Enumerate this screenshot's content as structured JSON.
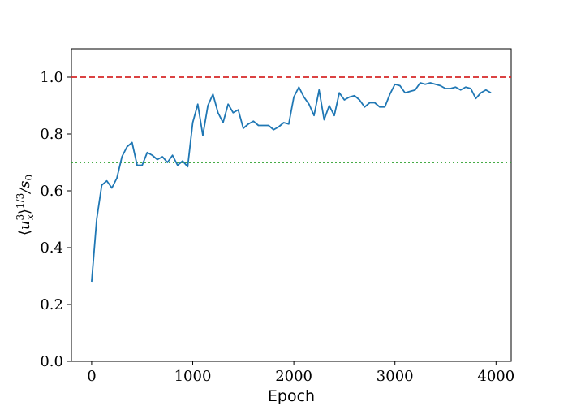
{
  "chart_data": {
    "type": "line",
    "title": "",
    "xlabel": "Epoch",
    "ylabel": "⟨u_x^3⟩^{1/3}/s_0",
    "xlim": [
      -200,
      4150
    ],
    "ylim": [
      0.0,
      1.1
    ],
    "xticks": [
      0,
      1000,
      2000,
      3000,
      4000
    ],
    "yticks": [
      0.0,
      0.2,
      0.4,
      0.6,
      0.8,
      1.0
    ],
    "xtick_labels": [
      "0",
      "1000",
      "2000",
      "3000",
      "4000"
    ],
    "ytick_labels": [
      "0.0",
      "0.2",
      "0.4",
      "0.6",
      "0.8",
      "1.0"
    ],
    "grid": false,
    "legend": "none",
    "series": [
      {
        "color": "#1f77b4",
        "style": "solid",
        "x": [
          0,
          50,
          100,
          150,
          200,
          250,
          300,
          350,
          400,
          450,
          500,
          550,
          600,
          650,
          700,
          750,
          800,
          850,
          900,
          950,
          1000,
          1050,
          1100,
          1150,
          1200,
          1250,
          1300,
          1350,
          1400,
          1450,
          1500,
          1550,
          1600,
          1650,
          1700,
          1750,
          1800,
          1850,
          1900,
          1950,
          2000,
          2050,
          2100,
          2150,
          2200,
          2250,
          2300,
          2350,
          2400,
          2450,
          2500,
          2550,
          2600,
          2650,
          2700,
          2750,
          2800,
          2850,
          2900,
          2950,
          3000,
          3050,
          3100,
          3150,
          3200,
          3250,
          3300,
          3350,
          3400,
          3450,
          3500,
          3550,
          3600,
          3650,
          3700,
          3750,
          3800,
          3850,
          3900,
          3950
        ],
        "y": [
          0.28,
          0.5,
          0.62,
          0.635,
          0.61,
          0.645,
          0.72,
          0.755,
          0.77,
          0.69,
          0.69,
          0.735,
          0.725,
          0.71,
          0.72,
          0.7,
          0.725,
          0.69,
          0.705,
          0.685,
          0.84,
          0.905,
          0.795,
          0.9,
          0.94,
          0.875,
          0.84,
          0.905,
          0.875,
          0.885,
          0.82,
          0.835,
          0.845,
          0.83,
          0.83,
          0.83,
          0.815,
          0.825,
          0.84,
          0.835,
          0.93,
          0.965,
          0.93,
          0.905,
          0.865,
          0.955,
          0.85,
          0.9,
          0.865,
          0.945,
          0.92,
          0.93,
          0.935,
          0.92,
          0.895,
          0.91,
          0.91,
          0.895,
          0.895,
          0.94,
          0.975,
          0.97,
          0.945,
          0.95,
          0.955,
          0.98,
          0.975,
          0.98,
          0.975,
          0.97,
          0.96,
          0.96,
          0.965,
          0.955,
          0.965,
          0.96,
          0.925,
          0.945,
          0.955,
          0.945
        ]
      }
    ],
    "reference_lines": [
      {
        "y": 1.0,
        "color": "#d62728",
        "style": "dashed"
      },
      {
        "y": 0.7,
        "color": "#2ca02c",
        "style": "dotted"
      }
    ]
  }
}
